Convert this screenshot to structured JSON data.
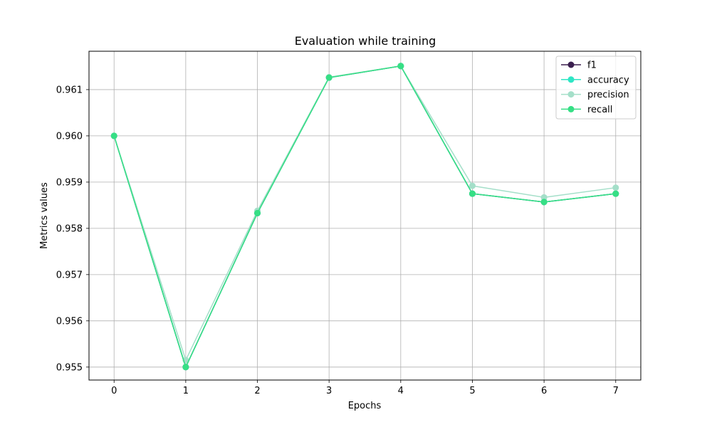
{
  "chart_data": {
    "type": "line",
    "title": "Evaluation while training",
    "xlabel": "Epochs",
    "ylabel": "Metrics values",
    "x": [
      0,
      1,
      2,
      3,
      4,
      5,
      6,
      7
    ],
    "xticks": [
      "0",
      "1",
      "2",
      "3",
      "4",
      "5",
      "6",
      "7"
    ],
    "yticks": [
      0.955,
      0.956,
      0.957,
      0.958,
      0.959,
      0.96,
      0.961
    ],
    "ytick_labels": [
      "0.955",
      "0.956",
      "0.957",
      "0.958",
      "0.959",
      "0.960",
      "0.961"
    ],
    "xlim": [
      -0.35,
      7.35
    ],
    "ylim": [
      0.95472,
      0.96183
    ],
    "grid": true,
    "legend_position": "top-right",
    "series": [
      {
        "name": "f1",
        "color": "#3b1f4f",
        "values": [
          0.96,
          0.955,
          0.95833,
          0.96126,
          0.96151,
          0.95875,
          0.95857,
          0.95875
        ]
      },
      {
        "name": "accuracy",
        "color": "#2ee6c5",
        "values": [
          0.96,
          0.955,
          0.95833,
          0.96126,
          0.96151,
          0.95875,
          0.95857,
          0.95875
        ]
      },
      {
        "name": "precision",
        "color": "#a4dfc9",
        "values": [
          0.96,
          0.95515,
          0.95838,
          0.96127,
          0.96151,
          0.95892,
          0.95867,
          0.95888
        ]
      },
      {
        "name": "recall",
        "color": "#36df85",
        "values": [
          0.96,
          0.955,
          0.95833,
          0.96126,
          0.96151,
          0.95875,
          0.95857,
          0.95875
        ]
      }
    ]
  }
}
